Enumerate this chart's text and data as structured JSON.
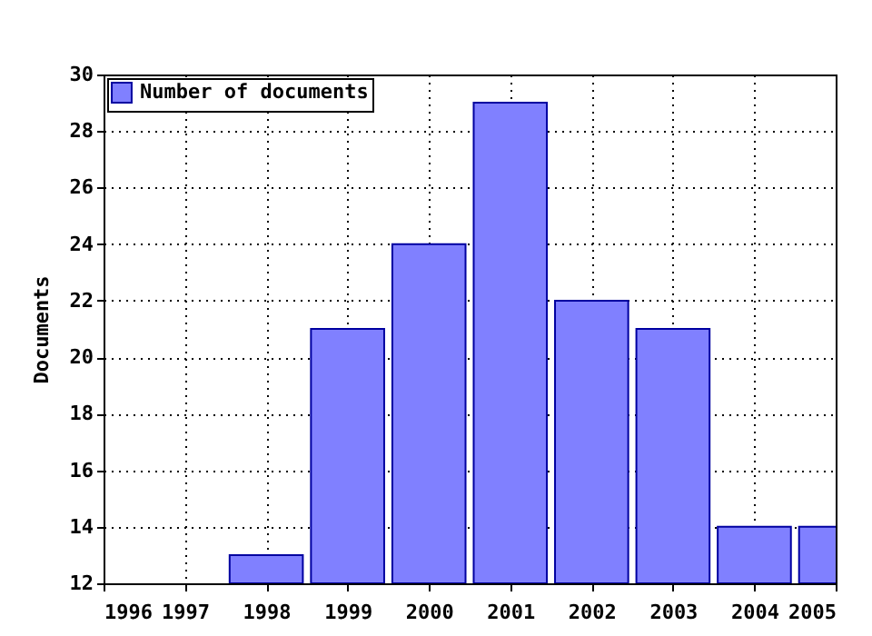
{
  "chart_data": {
    "type": "bar",
    "ylabel": "Documents",
    "x": [
      1998,
      1999,
      2000,
      2001,
      2002,
      2003,
      2004,
      2005
    ],
    "series": [
      {
        "name": "Number of documents",
        "color": "#8080ff",
        "values": [
          13,
          21,
          24,
          29,
          22,
          21,
          14,
          14
        ]
      }
    ],
    "xlim": [
      1996,
      2005
    ],
    "xticks": [
      1996,
      1997,
      1998,
      1999,
      2000,
      2001,
      2002,
      2003,
      2004,
      2005
    ],
    "ylim": [
      12,
      30
    ],
    "yticks": [
      12,
      14,
      16,
      18,
      20,
      22,
      24,
      26,
      28,
      30
    ],
    "grid": true,
    "legend": "top left"
  }
}
